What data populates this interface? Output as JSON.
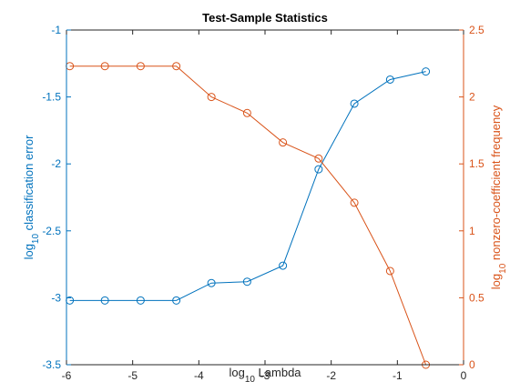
{
  "chart_data": {
    "type": "line",
    "title": "Test-Sample Statistics",
    "xlabel": {
      "prefix": "log",
      "sub": "10",
      "suffix": " Lambda"
    },
    "ylabel_left": {
      "prefix": "log",
      "sub": "10",
      "suffix": " classification error"
    },
    "ylabel_right": {
      "prefix": "log",
      "sub": "10",
      "suffix": " nonzero-coefficient frequency"
    },
    "xlim": [
      -6,
      0
    ],
    "ylim_left": [
      -3.5,
      -1
    ],
    "ylim_right": [
      0,
      2.5
    ],
    "xticks": [
      -6,
      -5,
      -4,
      -3,
      -2,
      -1,
      0
    ],
    "yticks_left": [
      -3.5,
      -3,
      -2.5,
      -2,
      -1.5,
      -1
    ],
    "yticks_right": [
      0,
      0.5,
      1,
      1.5,
      2,
      2.5
    ],
    "grid": false,
    "legend": "none",
    "series": [
      {
        "axis": "left",
        "color": "#0072BD",
        "marker": "circle",
        "x": [
          -5.95,
          -5.42,
          -4.88,
          -4.34,
          -3.81,
          -3.27,
          -2.73,
          -2.19,
          -1.65,
          -1.11,
          -0.57
        ],
        "y": [
          -3.02,
          -3.02,
          -3.02,
          -3.02,
          -2.89,
          -2.88,
          -2.76,
          -2.04,
          -1.55,
          -1.37,
          -1.31
        ]
      },
      {
        "axis": "right",
        "color": "#D95319",
        "marker": "circle",
        "x": [
          -5.95,
          -5.42,
          -4.88,
          -4.34,
          -3.81,
          -3.27,
          -2.73,
          -2.19,
          -1.65,
          -1.11,
          -0.57
        ],
        "y": [
          2.23,
          2.23,
          2.23,
          2.23,
          2.0,
          1.88,
          1.66,
          1.54,
          1.21,
          0.7,
          0.0
        ]
      }
    ]
  }
}
